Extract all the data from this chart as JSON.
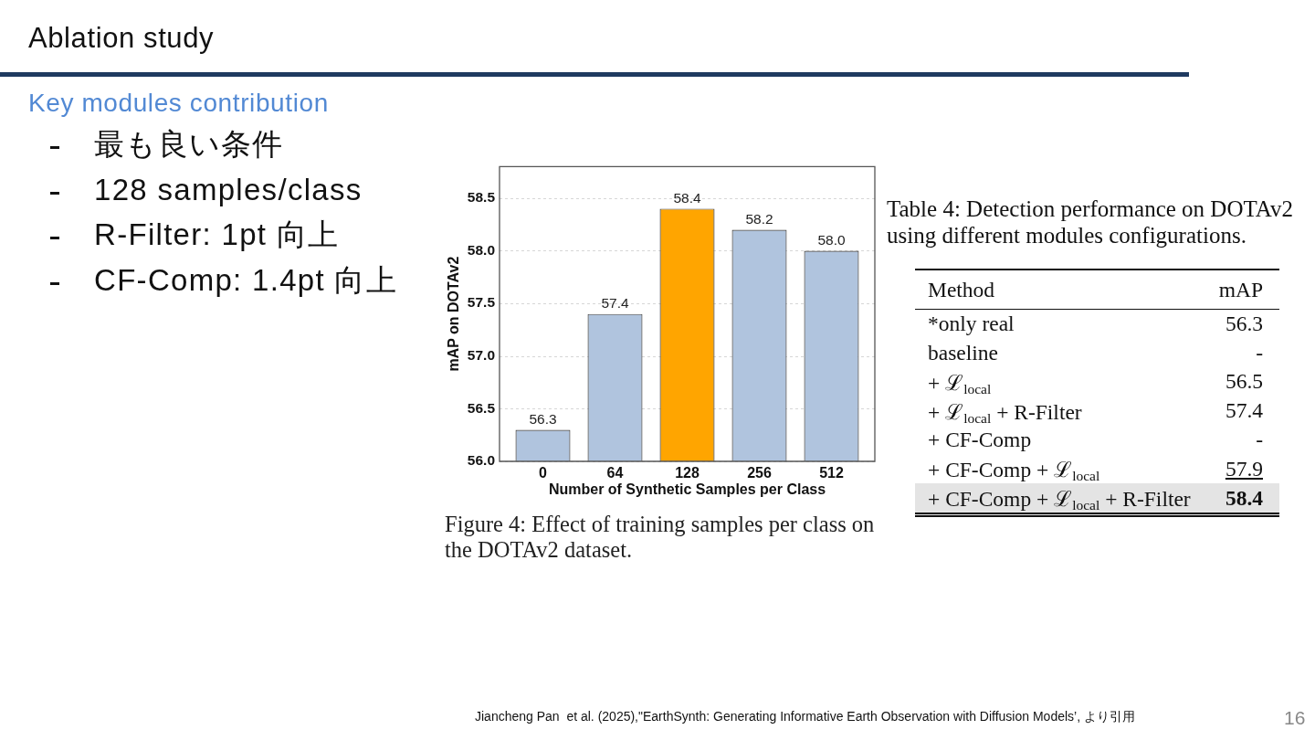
{
  "chart_data": [
    {
      "type": "other",
      "title": "Ablation study",
      "subtitle": "Key modules contribution",
      "annotations": [
        "最も良い条件",
        "128 samples/class",
        "R-Filter: 1pt 向上",
        "CF-Comp: 1.4pt 向上",
        "Jiancheng Pan  et al. (2025),\"EarthSynth: Generating Informative Earth Observation with Diffusion Models’, より引用",
        "16"
      ]
    },
    {
      "type": "bar",
      "xlabel": "Number of Synthetic Samples per Class",
      "ylabel": "mAP on DOTAv2",
      "categories": [
        "0",
        "64",
        "128",
        "256",
        "512"
      ],
      "values": [
        56.3,
        57.4,
        58.4,
        58.2,
        58.0
      ],
      "value_labels": [
        "56.3",
        "57.4",
        "58.4",
        "58.2",
        "58.0"
      ],
      "colors": [
        "#b0c4de",
        "#b0c4de",
        "#ffa500",
        "#b0c4de",
        "#b0c4de"
      ],
      "ylim": [
        56.0,
        58.8
      ],
      "yticks": [
        {
          "value": 56,
          "label": "56.0"
        },
        {
          "value": 56.5,
          "label": "56.5"
        },
        {
          "value": 57,
          "label": "57.0"
        },
        {
          "value": 57.5,
          "label": "57.5"
        },
        {
          "value": 58,
          "label": "58.0"
        },
        {
          "value": 58.5,
          "label": "58.5"
        }
      ],
      "grid": "y",
      "annotations": [
        "Figure 4: Effect of training samples per class on the DOTAv2 dataset."
      ]
    },
    {
      "type": "other",
      "title": "Table 4: Detection performance on DOTAv2 using different modules configurations.",
      "xlabel": "Method",
      "ylabel": "mAP",
      "categories": [
        "*only real",
        "baseline",
        "+ ℒ$_{local}$",
        "+ ℒ$_{local}$ + R-Filter",
        "+ CF-Comp",
        "+ CF-Comp + ℒ$_{local}$",
        "+ CF-Comp + ℒ$_{local}$ + R-Filter"
      ],
      "values": [
        56.3,
        null,
        56.5,
        57.4,
        null,
        57.9,
        58.4
      ],
      "value_labels": [
        "56.3",
        "-",
        "56.5",
        "57.4",
        "-",
        "57.9",
        "58.4"
      ]
    }
  ]
}
